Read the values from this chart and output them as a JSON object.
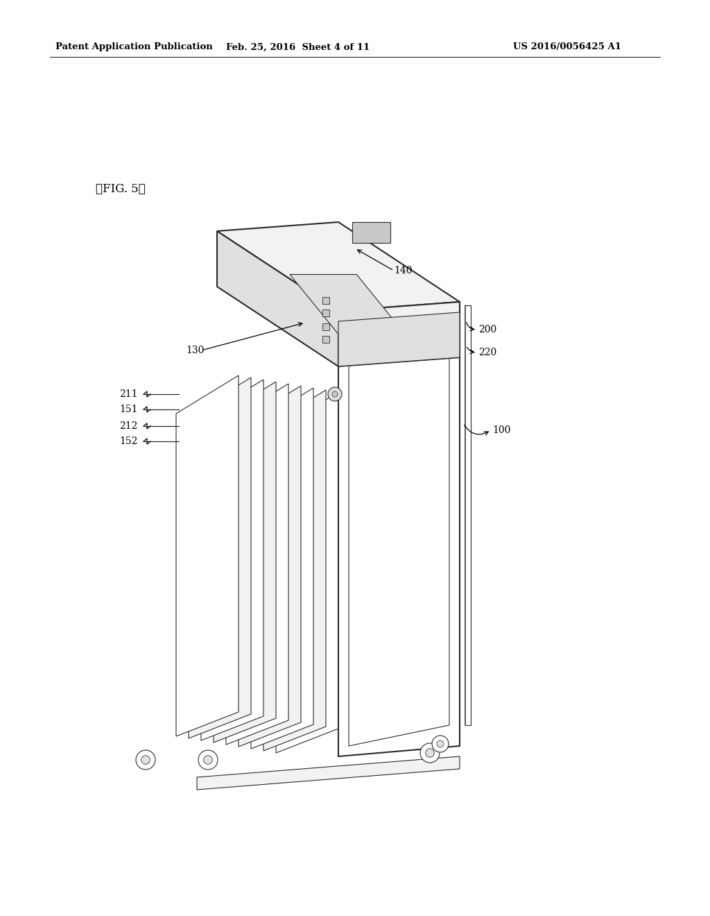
{
  "background_color": "#ffffff",
  "header_left": "Patent Application Publication",
  "header_center": "Feb. 25, 2016  Sheet 4 of 11",
  "header_right": "US 2016/0056425 A1",
  "fig_label": "』FIG. 5』",
  "line_color": "#2a2a2a",
  "fill_white": "#ffffff",
  "fill_light": "#f2f2f2",
  "fill_mid": "#e0e0e0",
  "fill_dark": "#c8c8c8",
  "fill_darker": "#b0b0b0"
}
